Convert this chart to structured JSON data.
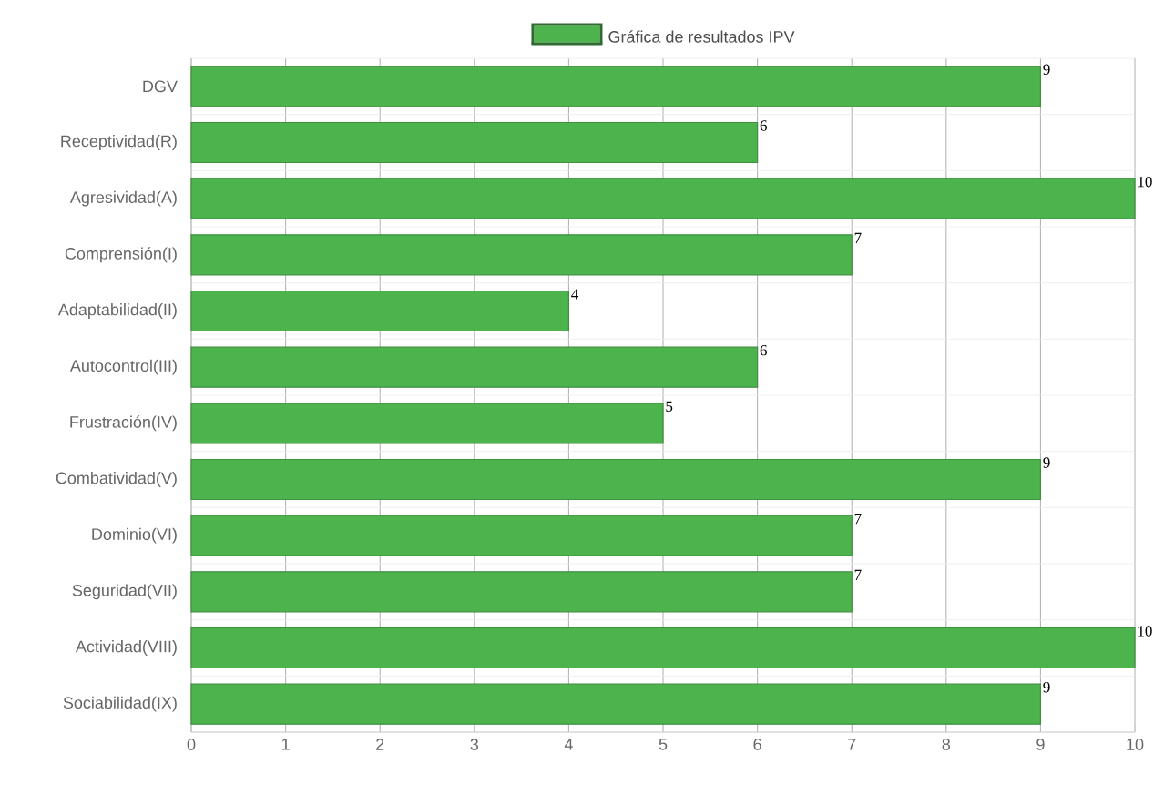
{
  "chart_data": {
    "type": "bar",
    "orientation": "horizontal",
    "categories": [
      "DGV",
      "Receptividad(R)",
      "Agresividad(A)",
      "Comprensión(I)",
      "Adaptabilidad(II)",
      "Autocontrol(III)",
      "Frustración(IV)",
      "Combatividad(V)",
      "Dominio(VI)",
      "Seguridad(VII)",
      "Actividad(VIII)",
      "Sociabilidad(IX)"
    ],
    "series": [
      {
        "name": "Gráfica de resultados IPV",
        "color": "#4db34d",
        "values": [
          9,
          6,
          10,
          7,
          4,
          6,
          5,
          9,
          7,
          7,
          10,
          9
        ]
      }
    ],
    "xlim": [
      0,
      10
    ],
    "xticks": [
      0,
      1,
      2,
      3,
      4,
      5,
      6,
      7,
      8,
      9,
      10
    ],
    "grid": true,
    "legend": "top",
    "data_labels": true
  }
}
